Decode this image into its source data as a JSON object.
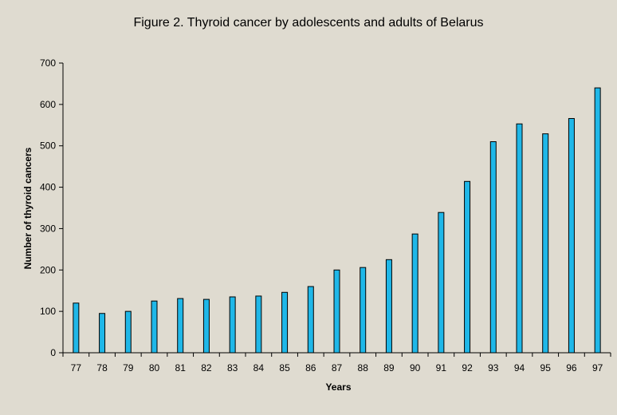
{
  "chart_data": {
    "type": "bar",
    "title": "Figure 2. Thyroid cancer by adolescents and adults of Belarus",
    "xlabel": "Years",
    "ylabel": "Number of thyroid cancers",
    "categories": [
      "77",
      "78",
      "79",
      "80",
      "81",
      "82",
      "83",
      "84",
      "85",
      "86",
      "87",
      "88",
      "89",
      "90",
      "91",
      "92",
      "93",
      "94",
      "95",
      "96",
      "97"
    ],
    "values": [
      120,
      95,
      100,
      125,
      131,
      129,
      135,
      137,
      146,
      160,
      200,
      206,
      225,
      287,
      339,
      414,
      510,
      553,
      529,
      566,
      640
    ],
    "ylim": [
      0,
      700
    ],
    "yticks": [
      0,
      100,
      200,
      300,
      400,
      500,
      600,
      700
    ],
    "grid": false,
    "legend": "none",
    "bar_color": "#1fb7e8"
  }
}
